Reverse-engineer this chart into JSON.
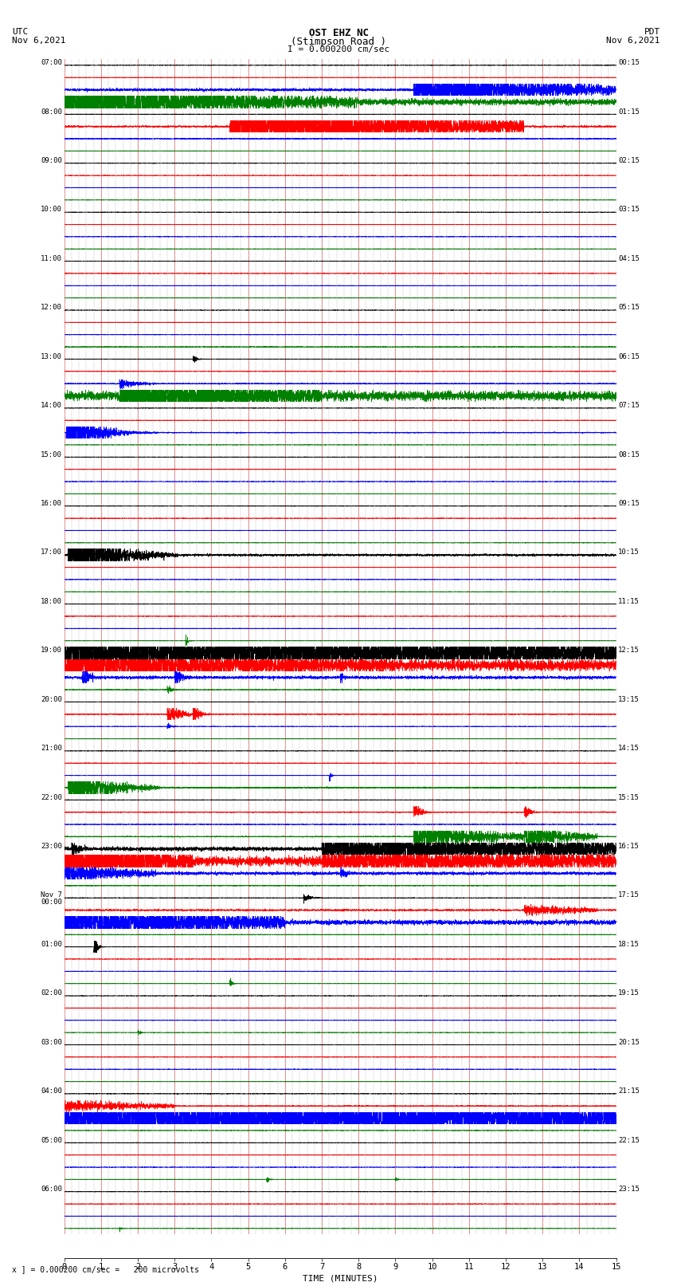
{
  "title_line1": "OST EHZ NC",
  "title_line2": "(Stimpson Road )",
  "title_line3": "I = 0.000200 cm/sec",
  "left_label_line1": "UTC",
  "left_label_line2": "Nov 6,2021",
  "right_label_line1": "PDT",
  "right_label_line2": "Nov 6,2021",
  "xlabel": "TIME (MINUTES)",
  "footer": "x ] = 0.000200 cm/sec =   200 microvolts",
  "bg_color": "#ffffff",
  "fig_width": 8.5,
  "fig_height": 16.13,
  "xlim": [
    0,
    15
  ],
  "utc_labels": [
    "07:00",
    "08:00",
    "09:00",
    "10:00",
    "11:00",
    "12:00",
    "13:00",
    "14:00",
    "15:00",
    "16:00",
    "17:00",
    "18:00",
    "19:00",
    "20:00",
    "21:00",
    "22:00",
    "23:00",
    "Nov 7\n00:00",
    "01:00",
    "02:00",
    "03:00",
    "04:00",
    "05:00",
    "06:00"
  ],
  "pdt_labels": [
    "00:15",
    "01:15",
    "02:15",
    "03:15",
    "04:15",
    "05:15",
    "06:15",
    "07:15",
    "08:15",
    "09:15",
    "10:15",
    "11:15",
    "12:15",
    "13:15",
    "14:15",
    "15:15",
    "16:15",
    "17:15",
    "18:15",
    "19:15",
    "20:15",
    "21:15",
    "22:15",
    "23:15"
  ],
  "row_order_per_group": [
    "black",
    "red",
    "blue",
    "green"
  ],
  "num_groups": 24,
  "noise_base": 0.08
}
